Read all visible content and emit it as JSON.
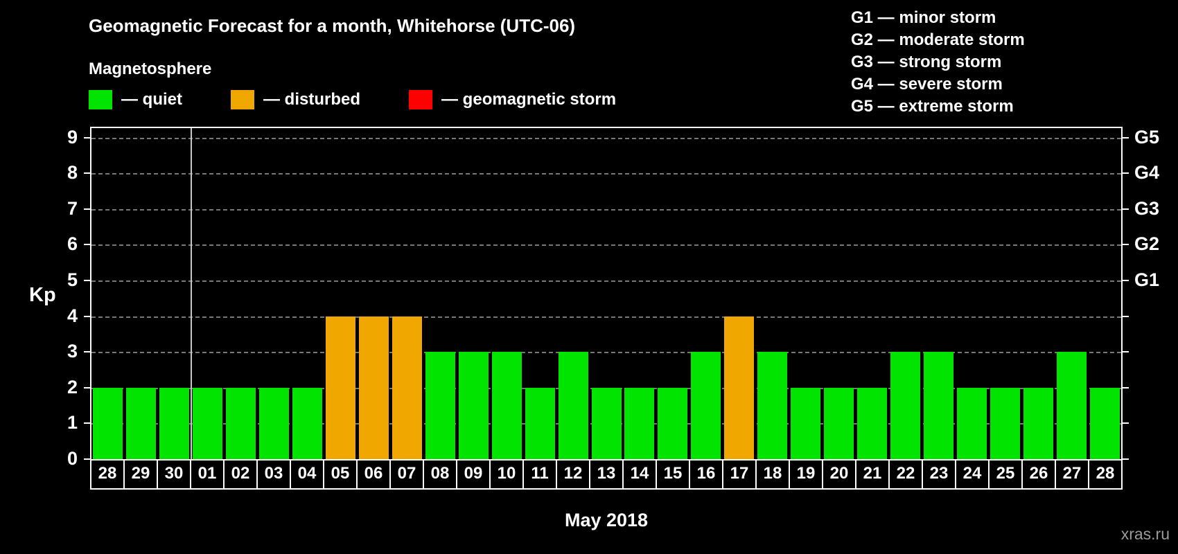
{
  "title": "Geomagnetic Forecast for a month, Whitehorse (UTC-06)",
  "legend": {
    "heading": "Magnetosphere",
    "items": [
      {
        "label": "— quiet",
        "status": "quiet",
        "color": "#00e400"
      },
      {
        "label": "— disturbed",
        "status": "disturbed",
        "color": "#f0a800"
      },
      {
        "label": "— geomagnetic storm",
        "status": "storm",
        "color": "#ff0000"
      }
    ]
  },
  "storm_legend": [
    "G1 — minor storm",
    "G2 — moderate storm",
    "G3 — strong storm",
    "G4 — severe storm",
    "G5 — extreme storm"
  ],
  "watermark": "xras.ru",
  "chart_data": {
    "type": "bar",
    "title": "Geomagnetic Forecast for a month, Whitehorse (UTC-06)",
    "xlabel": "May 2018",
    "ylabel": "Kp",
    "ylim": [
      0,
      9
    ],
    "yticks": [
      0,
      1,
      2,
      3,
      4,
      5,
      6,
      7,
      8,
      9
    ],
    "grid": "dashed-horizontal",
    "right_axis": [
      {
        "label": "G1",
        "value": 5
      },
      {
        "label": "G2",
        "value": 6
      },
      {
        "label": "G3",
        "value": 7
      },
      {
        "label": "G4",
        "value": 8
      },
      {
        "label": "G5",
        "value": 9
      }
    ],
    "categories": [
      "28",
      "29",
      "30",
      "01",
      "02",
      "03",
      "04",
      "05",
      "06",
      "07",
      "08",
      "09",
      "10",
      "11",
      "12",
      "13",
      "14",
      "15",
      "16",
      "17",
      "18",
      "19",
      "20",
      "21",
      "22",
      "23",
      "24",
      "25",
      "26",
      "27",
      "28"
    ],
    "values": [
      2,
      2,
      2,
      2,
      2,
      2,
      2,
      4,
      4,
      4,
      3,
      3,
      3,
      2,
      3,
      2,
      2,
      2,
      3,
      4,
      3,
      2,
      2,
      2,
      3,
      3,
      2,
      2,
      2,
      3,
      2
    ],
    "statuses": [
      "quiet",
      "quiet",
      "quiet",
      "quiet",
      "quiet",
      "quiet",
      "quiet",
      "disturbed",
      "disturbed",
      "disturbed",
      "quiet",
      "quiet",
      "quiet",
      "quiet",
      "quiet",
      "quiet",
      "quiet",
      "quiet",
      "quiet",
      "disturbed",
      "quiet",
      "quiet",
      "quiet",
      "quiet",
      "quiet",
      "quiet",
      "quiet",
      "quiet",
      "quiet",
      "quiet",
      "quiet"
    ],
    "month_separator_after_index": 2,
    "colors": {
      "quiet": "#00e400",
      "disturbed": "#f0a800",
      "storm": "#ff0000"
    }
  }
}
